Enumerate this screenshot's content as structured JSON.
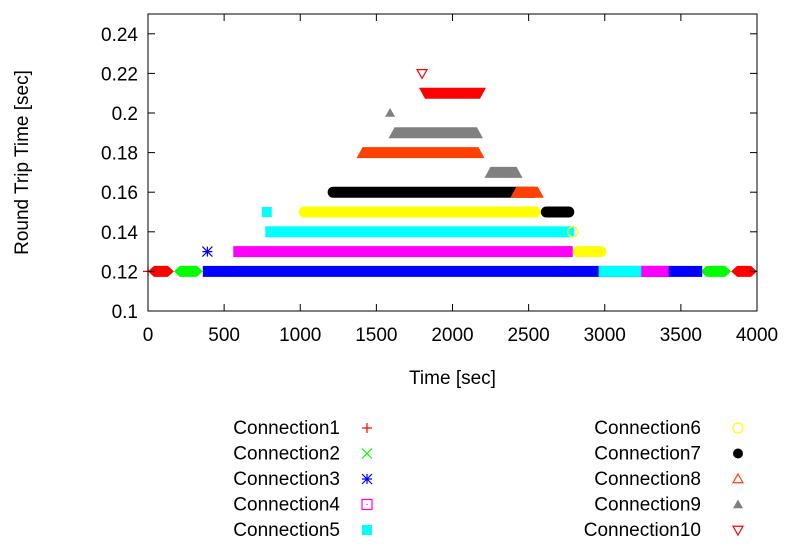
{
  "chart_data": {
    "type": "scatter",
    "xlabel": "Time [sec]",
    "ylabel": "Round Trip Time [sec]",
    "xlim": [
      0,
      4000
    ],
    "ylim": [
      0.1,
      0.25
    ],
    "xticks": [
      0,
      500,
      1000,
      1500,
      2000,
      2500,
      3000,
      3500,
      4000
    ],
    "yticks": [
      0.1,
      0.12,
      0.14,
      0.16,
      0.18,
      0.2,
      0.22,
      0.24
    ],
    "xtick_labels": [
      "0",
      "500",
      "1000",
      "1500",
      "2000",
      "2500",
      "3000",
      "3500",
      "4000"
    ],
    "ytick_labels": [
      "0.1",
      "0.12",
      "0.14",
      "0.16",
      "0.18",
      "0.2",
      "0.22",
      "0.24"
    ],
    "grid": false,
    "legend_position": "bottom",
    "series": [
      {
        "name": "Connection1",
        "marker": "plus",
        "color": "#ff0000",
        "bands": [
          {
            "y": 0.12,
            "x0": 0,
            "x1": 170
          },
          {
            "y": 0.12,
            "x0": 3830,
            "x1": 4000
          }
        ],
        "points": [
          {
            "x": 0,
            "y": 0.12
          }
        ]
      },
      {
        "name": "Connection2",
        "marker": "cross",
        "color": "#00ff00",
        "bands": [
          {
            "y": 0.12,
            "x0": 170,
            "x1": 360
          },
          {
            "y": 0.12,
            "x0": 3630,
            "x1": 3830
          }
        ],
        "points": []
      },
      {
        "name": "Connection3",
        "marker": "star",
        "color": "#0000ff",
        "bands": [
          {
            "y": 0.12,
            "x0": 360,
            "x1": 3640
          }
        ],
        "points": [
          {
            "x": 390,
            "y": 0.13
          }
        ]
      },
      {
        "name": "Connection4",
        "marker": "square-open",
        "color": "#ff00ff",
        "bands": [
          {
            "y": 0.13,
            "x0": 560,
            "x1": 2790
          },
          {
            "y": 0.12,
            "x0": 3220,
            "x1": 3420
          }
        ],
        "points": []
      },
      {
        "name": "Connection5",
        "marker": "square-filled",
        "color": "#00ffff",
        "bands": [
          {
            "y": 0.14,
            "x0": 770,
            "x1": 2800
          },
          {
            "y": 0.12,
            "x0": 2960,
            "x1": 3240
          }
        ],
        "points": [
          {
            "x": 780,
            "y": 0.15
          }
        ]
      },
      {
        "name": "Connection6",
        "marker": "circle-open",
        "color": "#ffff00",
        "bands": [
          {
            "y": 0.15,
            "x0": 990,
            "x1": 2580
          },
          {
            "y": 0.13,
            "x0": 2790,
            "x1": 3010
          }
        ],
        "points": [
          {
            "x": 2790,
            "y": 0.14
          }
        ]
      },
      {
        "name": "Connection7",
        "marker": "circle-filled",
        "color": "#000000",
        "bands": [
          {
            "y": 0.16,
            "x0": 1180,
            "x1": 2570
          },
          {
            "y": 0.15,
            "x0": 2580,
            "x1": 2800
          }
        ],
        "points": []
      },
      {
        "name": "Connection8",
        "marker": "triangle-up-open",
        "color": "#ff4000",
        "bands": [
          {
            "y": 0.18,
            "x0": 1370,
            "x1": 2210
          },
          {
            "y": 0.16,
            "x0": 2380,
            "x1": 2600
          }
        ],
        "points": []
      },
      {
        "name": "Connection9",
        "marker": "triangle-up-filled",
        "color": "#808080",
        "bands": [
          {
            "y": 0.19,
            "x0": 1580,
            "x1": 2200
          },
          {
            "y": 0.17,
            "x0": 2210,
            "x1": 2460
          }
        ],
        "points": [
          {
            "x": 1590,
            "y": 0.2
          }
        ]
      },
      {
        "name": "Connection10",
        "marker": "triangle-down-open",
        "color": "#ff0000",
        "bands": [
          {
            "y": 0.21,
            "x0": 1780,
            "x1": 2220
          }
        ],
        "points": [
          {
            "x": 1800,
            "y": 0.22
          }
        ]
      }
    ]
  }
}
